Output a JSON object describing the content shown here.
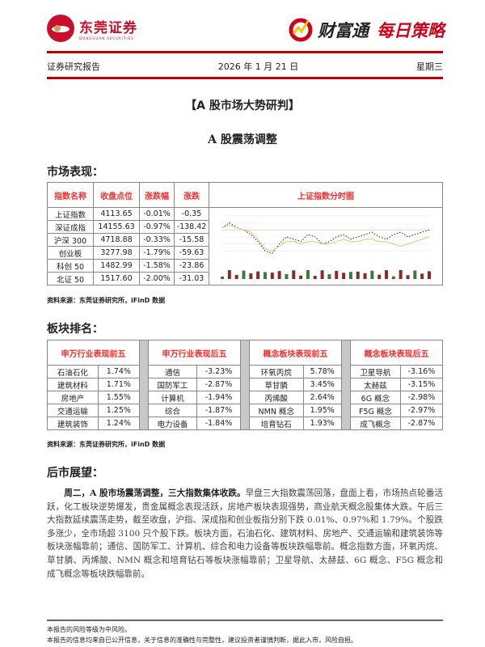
{
  "header": {
    "brand_cn": "东莞证券",
    "brand_en": "DONGGUAN SECURITIES",
    "product": "财富通",
    "column": "每日策略",
    "report_type": "证券研究报告",
    "date": "2026 年 1 月 21 日",
    "weekday": "星期三"
  },
  "title": "【A 股市场大势研判】",
  "subtitle": "A 股震荡调整",
  "market": {
    "heading": "市场表现：",
    "columns": [
      "指数名称",
      "收盘点位",
      "涨跌幅",
      "涨跌"
    ],
    "chart_title": "上证指数分时图",
    "rows": [
      [
        "上证指数",
        "4113.65",
        "-0.01%",
        "-0.35"
      ],
      [
        "深证成指",
        "14155.63",
        "-0.97%",
        "-138.42"
      ],
      [
        "沪深 300",
        "4718.88",
        "-0.33%",
        "-15.58"
      ],
      [
        "创业板",
        "3277.98",
        "-1.79%",
        "-59.63"
      ],
      [
        "科创 50",
        "1482.99",
        "-1.58%",
        "-23.86"
      ],
      [
        "北证 50",
        "1517.60",
        "-2.00%",
        "-31.03"
      ]
    ],
    "source": "资料来源：东莞证券研究所，iFinD 数据"
  },
  "chart_data": {
    "type": "line",
    "title": "",
    "series": [
      {
        "values": [
          0.1,
          0.3,
          0.1,
          0.0,
          -0.2,
          -0.5,
          -0.9,
          -1.0,
          -0.6,
          -0.3,
          -0.4,
          -0.5,
          -0.2,
          -0.3,
          -0.6,
          -0.5,
          -0.3,
          -0.2,
          -0.4,
          -0.3,
          -0.2,
          -0.1,
          -0.3,
          -0.4,
          -0.2,
          -0.1,
          -0.3,
          -0.2,
          -0.1,
          0.0
        ]
      },
      {
        "values": [
          0.1,
          0.2,
          0.1,
          0.0,
          -0.1,
          -0.4,
          -0.8,
          -0.9,
          -0.7,
          -0.5,
          -0.5,
          -0.6,
          -0.5,
          -0.5,
          -0.6,
          -0.6,
          -0.5,
          -0.4,
          -0.5,
          -0.5,
          -0.4,
          -0.4,
          -0.5,
          -0.5,
          -0.6,
          -0.7,
          -0.6,
          -0.5,
          -0.4,
          -0.3
        ]
      }
    ],
    "ylim": [
      -1.2,
      0.8
    ]
  },
  "sectors": {
    "heading": "板块排名：",
    "groups": [
      {
        "title": "申万行业表现前五",
        "items": [
          [
            "石油石化",
            "1.74%"
          ],
          [
            "建筑材料",
            "1.71%"
          ],
          [
            "房地产",
            "1.55%"
          ],
          [
            "交通运输",
            "1.25%"
          ],
          [
            "建筑装饰",
            "1.24%"
          ]
        ]
      },
      {
        "title": "申万行业表现后五",
        "items": [
          [
            "通信",
            "-3.23%"
          ],
          [
            "国防军工",
            "-2.87%"
          ],
          [
            "计算机",
            "-1.94%"
          ],
          [
            "综合",
            "-1.87%"
          ],
          [
            "电力设备",
            "-1.84%"
          ]
        ]
      },
      {
        "title": "概念板块表现前五",
        "items": [
          [
            "环氧丙烷",
            "5.78%"
          ],
          [
            "草甘膦",
            "3.45%"
          ],
          [
            "丙烯酸",
            "2.64%"
          ],
          [
            "NMN 概念",
            "1.95%"
          ],
          [
            "培育钻石",
            "1.93%"
          ]
        ]
      },
      {
        "title": "概念板块表现后五",
        "items": [
          [
            "卫星导航",
            "-3.16%"
          ],
          [
            "太赫兹",
            "-3.15%"
          ],
          [
            "6G 概念",
            "-2.98%"
          ],
          [
            "F5G 概念",
            "-2.97%"
          ],
          [
            "成飞概念",
            "-2.87%"
          ]
        ]
      }
    ],
    "source": "资料来源：东莞证券研究所，iFinD 数据"
  },
  "outlook": {
    "heading": "后市展望：",
    "lead": "周二，A 股市场震荡调整，三大指数集体收跌。",
    "body": "早盘三大指数震荡回落，盘面上看，市场热点轮番活跃，化工板块逆势爆发，贵金属概念表现活跃，房地产板块表现强势，商业航天概念股集体大跌。午后三大指数延续震荡走势，截至收盘，沪指、深成指和创业板指分别下跌 0.01%、0.97%和 1.79%。个股跌多涨少，全市场超 3100 只个股下跌。板块方面，石油石化、建筑材料、房地产、交通运输和建筑装饰等板块涨幅靠前；通信、国防军工、计算机、综合和电力设备等板块跌幅靠前。概念指数方面，环氧丙烷、草甘膦、丙烯酸、NMN 概念和培育钻石等板块涨幅靠前；卫星导航、太赫兹、6G 概念、F5G 概念和成飞概念等板块跌幅靠前。"
  },
  "footer": [
    "本报告的风险等级为中风险。",
    "本报告的信息均来自已公开信息，关于信息的准确性与完整性，建议投资者谨慎判断，据此入市，风险自担。"
  ]
}
